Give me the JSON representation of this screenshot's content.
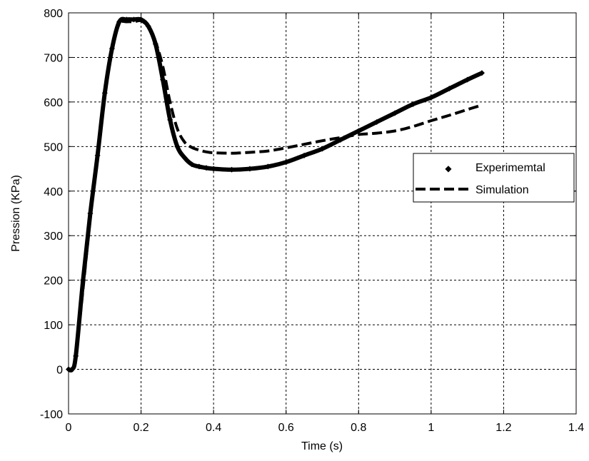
{
  "chart_data": {
    "type": "line",
    "xlabel": "Time (s)",
    "ylabel": "Pression (KPa)",
    "xlim": [
      0,
      1.4
    ],
    "ylim": [
      -100,
      800
    ],
    "xticks": [
      0,
      0.2,
      0.4,
      0.6,
      0.8,
      1,
      1.2,
      1.4
    ],
    "xtick_labels": [
      "0",
      "0.2",
      "0.4",
      "0.6",
      "0.8",
      "1",
      "1.2",
      "1.4"
    ],
    "yticks": [
      -100,
      0,
      100,
      200,
      300,
      400,
      500,
      600,
      700,
      800
    ],
    "ytick_labels": [
      "-100",
      "0",
      "100",
      "200",
      "300",
      "400",
      "500",
      "600",
      "700",
      "800"
    ],
    "grid": true,
    "legend_position": "right",
    "series": [
      {
        "name": "Experimemtal",
        "style": "markers",
        "color": "#000000",
        "x": [
          0,
          0.01,
          0.02,
          0.04,
          0.06,
          0.08,
          0.1,
          0.12,
          0.14,
          0.16,
          0.18,
          0.2,
          0.22,
          0.24,
          0.26,
          0.28,
          0.3,
          0.32,
          0.34,
          0.36,
          0.38,
          0.4,
          0.45,
          0.5,
          0.55,
          0.6,
          0.65,
          0.7,
          0.75,
          0.8,
          0.85,
          0.9,
          0.95,
          1.0,
          1.05,
          1.1,
          1.14
        ],
        "y": [
          0,
          0,
          30,
          200,
          350,
          480,
          620,
          720,
          780,
          785,
          785,
          785,
          770,
          730,
          650,
          560,
          500,
          475,
          460,
          455,
          452,
          450,
          448,
          450,
          455,
          465,
          480,
          495,
          515,
          535,
          555,
          575,
          595,
          610,
          630,
          650,
          665
        ]
      },
      {
        "name": "Simulation",
        "style": "dashed",
        "color": "#000000",
        "x": [
          0,
          0.01,
          0.02,
          0.04,
          0.06,
          0.08,
          0.1,
          0.12,
          0.14,
          0.16,
          0.18,
          0.2,
          0.22,
          0.24,
          0.26,
          0.28,
          0.3,
          0.32,
          0.34,
          0.36,
          0.38,
          0.4,
          0.45,
          0.5,
          0.55,
          0.6,
          0.65,
          0.7,
          0.75,
          0.8,
          0.85,
          0.9,
          0.95,
          1.0,
          1.05,
          1.1,
          1.14
        ],
        "y": [
          0,
          0,
          30,
          180,
          340,
          480,
          610,
          720,
          775,
          780,
          780,
          782,
          768,
          735,
          680,
          600,
          540,
          510,
          498,
          492,
          488,
          486,
          485,
          487,
          490,
          497,
          505,
          513,
          520,
          527,
          530,
          535,
          545,
          558,
          570,
          583,
          593
        ]
      }
    ]
  }
}
